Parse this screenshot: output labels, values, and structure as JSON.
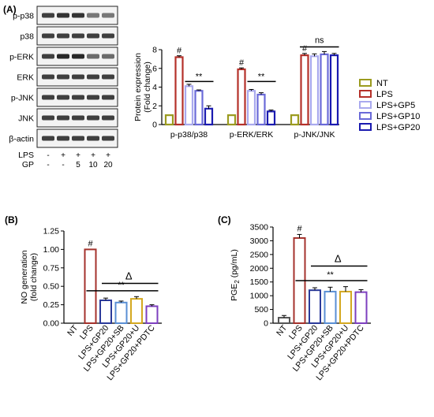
{
  "panels": {
    "a": "(A)",
    "b": "(B)",
    "c": "(C)"
  },
  "blot": {
    "rows": [
      "p-p38",
      "p38",
      "p-ERK",
      "ERK",
      "p-JNK",
      "JNK",
      "β-actin"
    ],
    "treatment_rows": [
      {
        "label": "LPS",
        "values": [
          "-",
          "+",
          "+",
          "+",
          "+"
        ]
      },
      {
        "label": "GP",
        "values": [
          "-",
          "-",
          "5",
          "10",
          "20"
        ]
      }
    ]
  },
  "colors": {
    "NT": "#9b9b1f",
    "LPS": "#b5312a",
    "LPS+GP5": "#a9a9ee",
    "LPS+GP10": "#6a6ad8",
    "LPS+GP20": "#1a1ab0",
    "B_NT": "#555555",
    "B_LPS": "#a4322c",
    "B_GP20": "#2b3a9a",
    "B_SB": "#5a8fd4",
    "B_U": "#d4a820",
    "B_PDTC": "#7d3fbf"
  },
  "chart_data": [
    {
      "type": "bar",
      "panel": "A",
      "categories": [
        "p-p38/p38",
        "p-ERK/ERK",
        "p-JNK/JNK"
      ],
      "series": [
        {
          "name": "NT",
          "values": [
            1.0,
            1.0,
            1.0
          ],
          "errors": [
            0.0,
            0.0,
            0.0
          ]
        },
        {
          "name": "LPS",
          "values": [
            7.2,
            5.9,
            7.4
          ],
          "errors": [
            0.15,
            0.15,
            0.2
          ]
        },
        {
          "name": "LPS+GP5",
          "values": [
            4.1,
            3.6,
            7.3
          ],
          "errors": [
            0.2,
            0.15,
            0.25
          ]
        },
        {
          "name": "LPS+GP10",
          "values": [
            3.6,
            3.2,
            7.5
          ],
          "errors": [
            0.1,
            0.2,
            0.3
          ]
        },
        {
          "name": "LPS+GP20",
          "values": [
            1.7,
            1.4,
            7.4
          ],
          "errors": [
            0.3,
            0.15,
            0.2
          ]
        }
      ],
      "ylabel": "Protein expression (Fold change)",
      "ylabel_lines": [
        "Protein expression",
        "(Fold change)"
      ],
      "ylim": [
        0,
        8
      ],
      "yticks": [
        0,
        2,
        4,
        6,
        8
      ],
      "annotations": {
        "hash": "#",
        "stars": "**",
        "ns": "ns"
      },
      "legend_position": "right"
    },
    {
      "type": "bar",
      "panel": "B",
      "categories": [
        "NT",
        "LPS",
        "LPS+GP20",
        "LPS+GP20+SB",
        "LPS+GP20+U",
        "LPS+GP20+PDTC"
      ],
      "values": [
        0.0,
        1.0,
        0.31,
        0.28,
        0.33,
        0.23
      ],
      "errors": [
        0.0,
        0.0,
        0.03,
        0.02,
        0.03,
        0.02
      ],
      "ylabel": "NO generation (fold change)",
      "ylabel_lines": [
        "NO generation",
        "(fold change)"
      ],
      "ylim": [
        0,
        1.25
      ],
      "yticks": [
        0.0,
        0.25,
        0.5,
        0.75,
        1.0,
        1.25
      ],
      "ytick_labels": [
        "0.00",
        "0.25",
        "0.50",
        "0.75",
        "1.00",
        "1.25"
      ],
      "annotations": {
        "hash": "#",
        "delta": "Δ",
        "stars": "**"
      }
    },
    {
      "type": "bar",
      "panel": "C",
      "categories": [
        "NT",
        "LPS",
        "LPS+GP20",
        "LPS+GP20+SB",
        "LPS+GP20+U",
        "LPS+GP20+PDTC"
      ],
      "values": [
        200,
        3100,
        1200,
        1150,
        1150,
        1130
      ],
      "errors": [
        80,
        130,
        90,
        160,
        180,
        90
      ],
      "ylabel": "PGE2 (pg/mL)",
      "ylabel_main": "PGE",
      "ylabel_sub": "2",
      "ylabel_unit": " (pg/mL)",
      "ylim": [
        0,
        3500
      ],
      "yticks": [
        0,
        500,
        1000,
        1500,
        2000,
        2500,
        3000,
        3500
      ],
      "annotations": {
        "hash": "#",
        "delta": "Δ",
        "stars": "**"
      }
    }
  ]
}
